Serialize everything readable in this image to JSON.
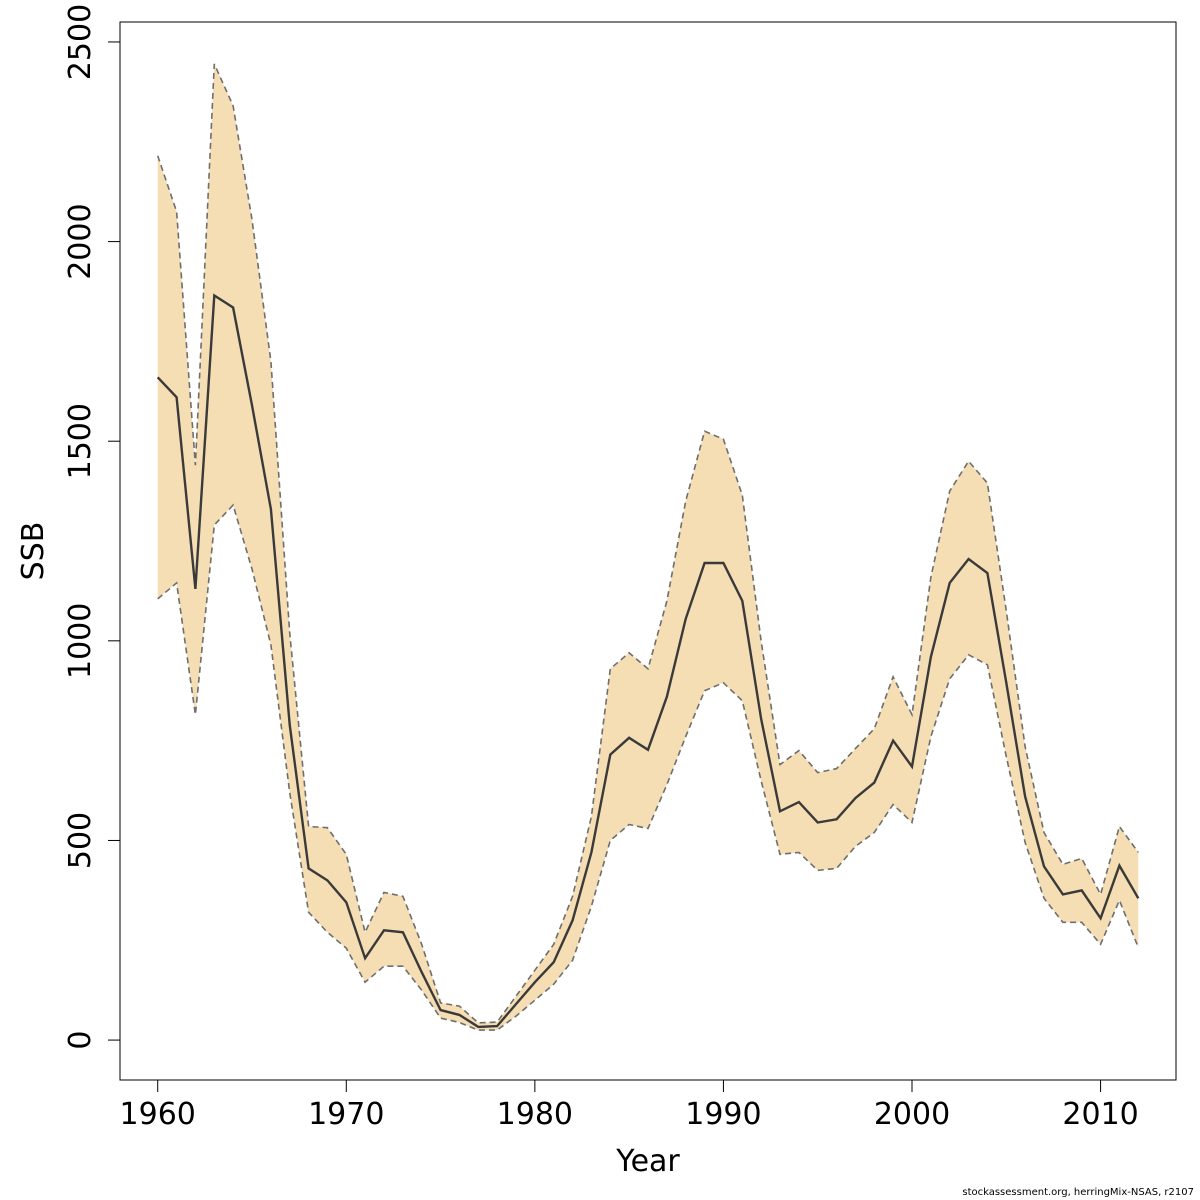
{
  "chart_data": {
    "type": "area",
    "xlabel": "Year",
    "ylabel": "SSB",
    "xlim": [
      1958,
      2014
    ],
    "ylim": [
      -100,
      2550
    ],
    "xticks": [
      1960,
      1970,
      1980,
      1990,
      2000,
      2010
    ],
    "yticks": [
      0,
      500,
      1000,
      1500,
      2000,
      2500
    ],
    "colors": {
      "band": "#f5deb3",
      "line": "#3a3a3a",
      "bound": "#6e6e6e"
    },
    "x": [
      1960,
      1961,
      1962,
      1963,
      1964,
      1965,
      1966,
      1967,
      1968,
      1969,
      1970,
      1971,
      1972,
      1973,
      1974,
      1975,
      1976,
      1977,
      1978,
      1979,
      1980,
      1981,
      1982,
      1983,
      1984,
      1985,
      1986,
      1987,
      1988,
      1989,
      1990,
      1991,
      1992,
      1993,
      1994,
      1995,
      1996,
      1997,
      1998,
      1999,
      2000,
      2001,
      2002,
      2003,
      2004,
      2005,
      2006,
      2007,
      2008,
      2009,
      2010,
      2011,
      2012
    ],
    "series": [
      {
        "role": "estimate",
        "values": [
          1660,
          1610,
          1130,
          1865,
          1835,
          1590,
          1330,
          790,
          430,
          400,
          345,
          205,
          275,
          270,
          170,
          75,
          63,
          33,
          35,
          90,
          145,
          195,
          300,
          470,
          715,
          757,
          727,
          860,
          1055,
          1195,
          1195,
          1100,
          805,
          573,
          596,
          545,
          553,
          606,
          645,
          750,
          685,
          960,
          1145,
          1205,
          1170,
          895,
          610,
          435,
          365,
          375,
          305,
          437,
          355
        ]
      },
      {
        "role": "upper",
        "values": [
          2215,
          2075,
          1440,
          2445,
          2340,
          2055,
          1700,
          1020,
          535,
          532,
          465,
          270,
          370,
          360,
          240,
          93,
          85,
          43,
          45,
          110,
          175,
          240,
          360,
          560,
          930,
          970,
          930,
          1100,
          1350,
          1525,
          1505,
          1365,
          1000,
          690,
          725,
          670,
          680,
          730,
          780,
          910,
          815,
          1160,
          1375,
          1450,
          1395,
          1075,
          735,
          520,
          440,
          455,
          365,
          535,
          470
        ]
      },
      {
        "role": "lower",
        "values": [
          1105,
          1145,
          815,
          1290,
          1340,
          1180,
          990,
          620,
          320,
          270,
          230,
          145,
          185,
          185,
          125,
          55,
          44,
          25,
          25,
          60,
          100,
          140,
          200,
          335,
          500,
          540,
          530,
          640,
          760,
          875,
          895,
          850,
          650,
          465,
          470,
          425,
          430,
          485,
          520,
          590,
          545,
          760,
          905,
          965,
          940,
          710,
          495,
          355,
          295,
          295,
          240,
          350,
          232
        ]
      }
    ]
  },
  "footer": "stockassessment.org, herringMix-NSAS, r2107"
}
